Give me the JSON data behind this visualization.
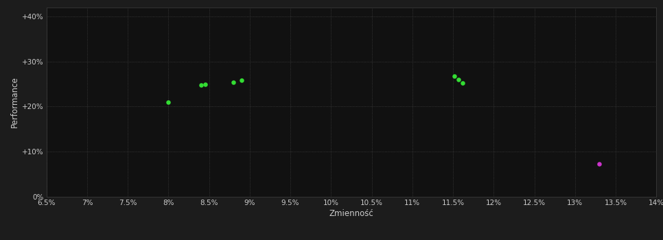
{
  "background_color": "#1c1c1c",
  "plot_bg_color": "#111111",
  "grid_color": "#404040",
  "text_color": "#cccccc",
  "xlabel": "Zmienność",
  "ylabel": "Performance",
  "xlim": [
    0.065,
    0.14
  ],
  "ylim": [
    0.0,
    0.42
  ],
  "xticks": [
    0.065,
    0.07,
    0.075,
    0.08,
    0.085,
    0.09,
    0.095,
    0.1,
    0.105,
    0.11,
    0.115,
    0.12,
    0.125,
    0.13,
    0.135,
    0.14
  ],
  "xtick_labels": [
    "6.5%",
    "7%",
    "7.5%",
    "8%",
    "8.5%",
    "9%",
    "9.5%",
    "10%",
    "10.5%",
    "11%",
    "11.5%",
    "12%",
    "12.5%",
    "13%",
    "13.5%",
    "14%"
  ],
  "yticks": [
    0.0,
    0.1,
    0.2,
    0.3,
    0.4
  ],
  "ytick_labels": [
    "0%",
    "+10%",
    "+20%",
    "+30%",
    "+40%"
  ],
  "green_points": [
    [
      0.08,
      0.209
    ],
    [
      0.084,
      0.248
    ],
    [
      0.0845,
      0.249
    ],
    [
      0.088,
      0.253
    ],
    [
      0.089,
      0.258
    ],
    [
      0.1152,
      0.267
    ],
    [
      0.1157,
      0.259
    ],
    [
      0.1162,
      0.252
    ]
  ],
  "magenta_points": [
    [
      0.133,
      0.073
    ]
  ],
  "green_color": "#33dd33",
  "magenta_color": "#cc33cc",
  "point_size": 22,
  "figsize": [
    9.66,
    3.5
  ],
  "dpi": 100
}
